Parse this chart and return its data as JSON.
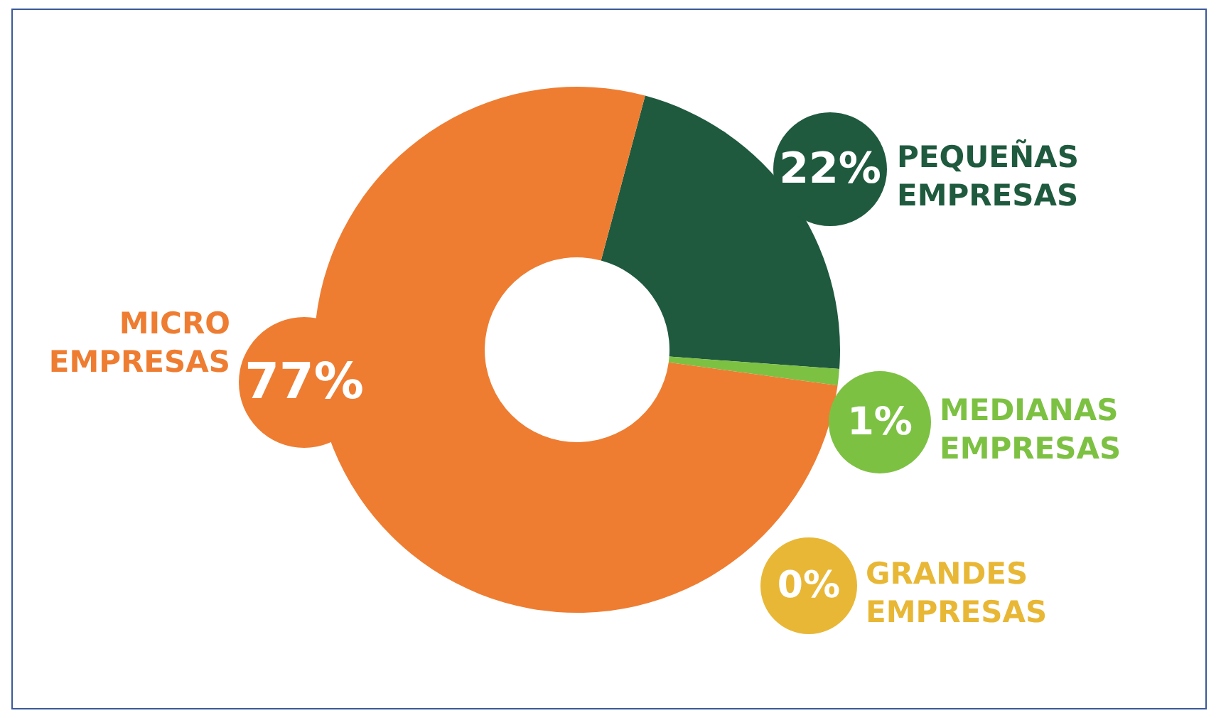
{
  "chart_data": {
    "type": "donut",
    "categories": [
      "PEQUEÑAS EMPRESAS",
      "MEDIANAS EMPRESAS",
      "GRANDES EMPRESAS",
      "MICRO EMPRESAS"
    ],
    "values": [
      22,
      1,
      0,
      77
    ],
    "value_labels": [
      "22%",
      "1%",
      "0%",
      "77%"
    ],
    "colors": [
      "#1f5a3e",
      "#7dc143",
      "#e8b735",
      "#ee7d32"
    ],
    "legend": false
  }
}
